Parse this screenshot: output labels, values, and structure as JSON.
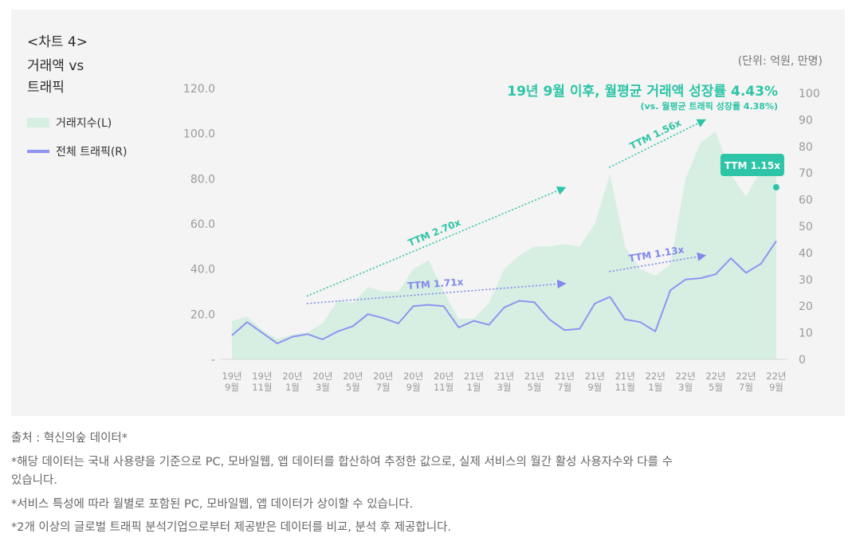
{
  "title_lines": [
    "<차트 4>",
    "거래액 vs",
    "트래픽"
  ],
  "legend": {
    "area_label": "거래지수(L)",
    "line_label": "전체 트래픽(R)"
  },
  "unit_label": "(단위: 억원, 만명)",
  "headline": "19년 9월 이후, 월평균 거래액 성장률 4.43%",
  "subline": "(vs. 월평균 트래픽 성장률 4.38%)",
  "colors": {
    "area": "#d6efe2",
    "line": "#8f93f2",
    "accent": "#2ec4a7",
    "line_annot": "#8288ec"
  },
  "chart_data": {
    "type": "area+line",
    "x": [
      "19년 9월",
      "19년 10월",
      "19년 11월",
      "19년 12월",
      "20년 1월",
      "20년 2월",
      "20년 3월",
      "20년 4월",
      "20년 5월",
      "20년 6월",
      "20년 7월",
      "20년 8월",
      "20년 9월",
      "20년 10월",
      "20년 11월",
      "20년 12월",
      "21년 1월",
      "21년 2월",
      "21년 3월",
      "21년 4월",
      "21년 5월",
      "21년 6월",
      "21년 7월",
      "21년 8월",
      "21년 9월",
      "21년 10월",
      "21년 11월",
      "21년 12월",
      "22년 1월",
      "22년 2월",
      "22년 3월",
      "22년 4월",
      "22년 5월",
      "22년 6월",
      "22년 7월",
      "22년 8월",
      "22년 9월"
    ],
    "x_tick_labels": [
      {
        "index": 0,
        "year": "19년",
        "month": "9월"
      },
      {
        "index": 2,
        "year": "19년",
        "month": "11월"
      },
      {
        "index": 4,
        "year": "20년",
        "month": "1월"
      },
      {
        "index": 6,
        "year": "20년",
        "month": "3월"
      },
      {
        "index": 8,
        "year": "20년",
        "month": "5월"
      },
      {
        "index": 10,
        "year": "20년",
        "month": "7월"
      },
      {
        "index": 12,
        "year": "20년",
        "month": "9월"
      },
      {
        "index": 14,
        "year": "20년",
        "month": "11월"
      },
      {
        "index": 16,
        "year": "21년",
        "month": "1월"
      },
      {
        "index": 18,
        "year": "21년",
        "month": "3월"
      },
      {
        "index": 20,
        "year": "21년",
        "month": "5월"
      },
      {
        "index": 22,
        "year": "21년",
        "month": "7월"
      },
      {
        "index": 24,
        "year": "21년",
        "month": "9월"
      },
      {
        "index": 26,
        "year": "21년",
        "month": "11월"
      },
      {
        "index": 28,
        "year": "22년",
        "month": "1월"
      },
      {
        "index": 30,
        "year": "22년",
        "month": "3월"
      },
      {
        "index": 32,
        "year": "22년",
        "month": "5월"
      },
      {
        "index": 34,
        "year": "22년",
        "month": "7월"
      },
      {
        "index": 36,
        "year": "22년",
        "month": "9월"
      }
    ],
    "left_axis": {
      "ylim": [
        0,
        120
      ],
      "ticks": [
        "-",
        "20.0",
        "40.0",
        "60.0",
        "80.0",
        "100.0",
        "120.0"
      ]
    },
    "right_axis": {
      "ylim": [
        0,
        100
      ],
      "ticks": [
        "0",
        "10",
        "20",
        "30",
        "40",
        "50",
        "60",
        "70",
        "80",
        "90",
        "100"
      ]
    },
    "series": [
      {
        "name": "거래지수(L)",
        "type": "area",
        "axis": "left",
        "values": [
          17,
          19,
          13,
          9,
          11,
          12,
          16,
          26,
          25,
          32,
          30,
          30,
          40,
          44,
          30,
          18,
          18,
          25,
          40,
          46,
          50,
          50,
          51,
          50,
          60,
          82,
          50,
          40,
          37,
          42,
          80,
          96,
          101,
          82,
          72,
          84,
          84
        ]
      },
      {
        "name": "전체 트래픽(R)",
        "type": "line",
        "axis": "right",
        "values": [
          9,
          14,
          10,
          6,
          8.5,
          9.5,
          7.5,
          10.5,
          12.5,
          17,
          15.5,
          13.5,
          20,
          20.5,
          20,
          12,
          14.5,
          13,
          19.5,
          22,
          21.5,
          15,
          11,
          11.5,
          21,
          23.5,
          15,
          14,
          10.5,
          26,
          30,
          30.5,
          32,
          38,
          32.5,
          36,
          44.5
        ]
      }
    ],
    "annotations": [
      {
        "label": "TTM 2.70x",
        "series": "거래지수(L)",
        "from_index": 2,
        "to_index": 22,
        "from_value": 28,
        "to_value": 76
      },
      {
        "label": "TTM 1.56x",
        "series": "거래지수(L)",
        "from_index": 22,
        "to_index": 32,
        "from_value": 85,
        "to_value": 106
      },
      {
        "label": "TTM 1.71x",
        "series": "전체 트래픽(R)",
        "from_index": 2,
        "to_index": 22,
        "from_value": 21,
        "to_value": 28.5
      },
      {
        "label": "TTM 1.13x",
        "series": "전체 트래픽(R)",
        "from_index": 22,
        "to_index": 32,
        "from_value": 33,
        "to_value": 39
      },
      {
        "label": "TTM 1.15x",
        "type": "callout",
        "series": "거래지수(L)",
        "index": 36,
        "value": 84
      }
    ]
  },
  "footnotes": [
    "출처 : 혁신의숲 데이터*",
    "*해당 데이터는 국내 사용량을 기준으로 PC, 모바일웹, 앱 데이터를 합산하여 추정한 값으로, 실제 서비스의 월간 활성 사용자수와 다를 수",
    "있습니다.",
    "*서비스 특성에 따라 월별로 포함된 PC, 모바일웹, 앱 데이터가 상이할 수 있습니다.",
    "*2개 이상의 글로벌 트래픽 분석기업으로부터 제공받은 데이터를 비교, 분석 후 제공합니다."
  ]
}
